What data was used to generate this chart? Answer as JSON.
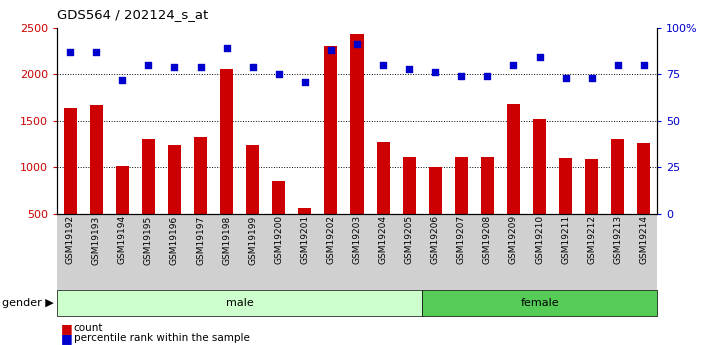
{
  "title": "GDS564 / 202124_s_at",
  "samples": [
    "GSM19192",
    "GSM19193",
    "GSM19194",
    "GSM19195",
    "GSM19196",
    "GSM19197",
    "GSM19198",
    "GSM19199",
    "GSM19200",
    "GSM19201",
    "GSM19202",
    "GSM19203",
    "GSM19204",
    "GSM19205",
    "GSM19206",
    "GSM19207",
    "GSM19208",
    "GSM19209",
    "GSM19210",
    "GSM19211",
    "GSM19212",
    "GSM19213",
    "GSM19214"
  ],
  "counts": [
    1640,
    1670,
    1010,
    1300,
    1245,
    1330,
    2060,
    1245,
    850,
    560,
    2300,
    2430,
    1270,
    1110,
    1000,
    1115,
    1115,
    1680,
    1520,
    1100,
    1085,
    1305,
    1260
  ],
  "percentiles": [
    87,
    87,
    72,
    80,
    79,
    79,
    89,
    79,
    75,
    71,
    88,
    91,
    80,
    78,
    76,
    74,
    74,
    80,
    84,
    73,
    73,
    80,
    80
  ],
  "male_count": 14,
  "female_count": 9,
  "bar_color": "#cc0000",
  "dot_color": "#0000cc",
  "ylim_left": [
    500,
    2500
  ],
  "ylim_right": [
    0,
    100
  ],
  "yticks_left": [
    500,
    1000,
    1500,
    2000,
    2500
  ],
  "yticks_right": [
    0,
    25,
    50,
    75,
    100
  ],
  "ytick_labels_right": [
    "0",
    "25",
    "50",
    "75",
    "100%"
  ],
  "male_color": "#ccffcc",
  "female_color": "#55cc55",
  "xtick_bg_color": "#d0d0d0",
  "bg_color": "#ffffff",
  "grid_color": "#000000"
}
